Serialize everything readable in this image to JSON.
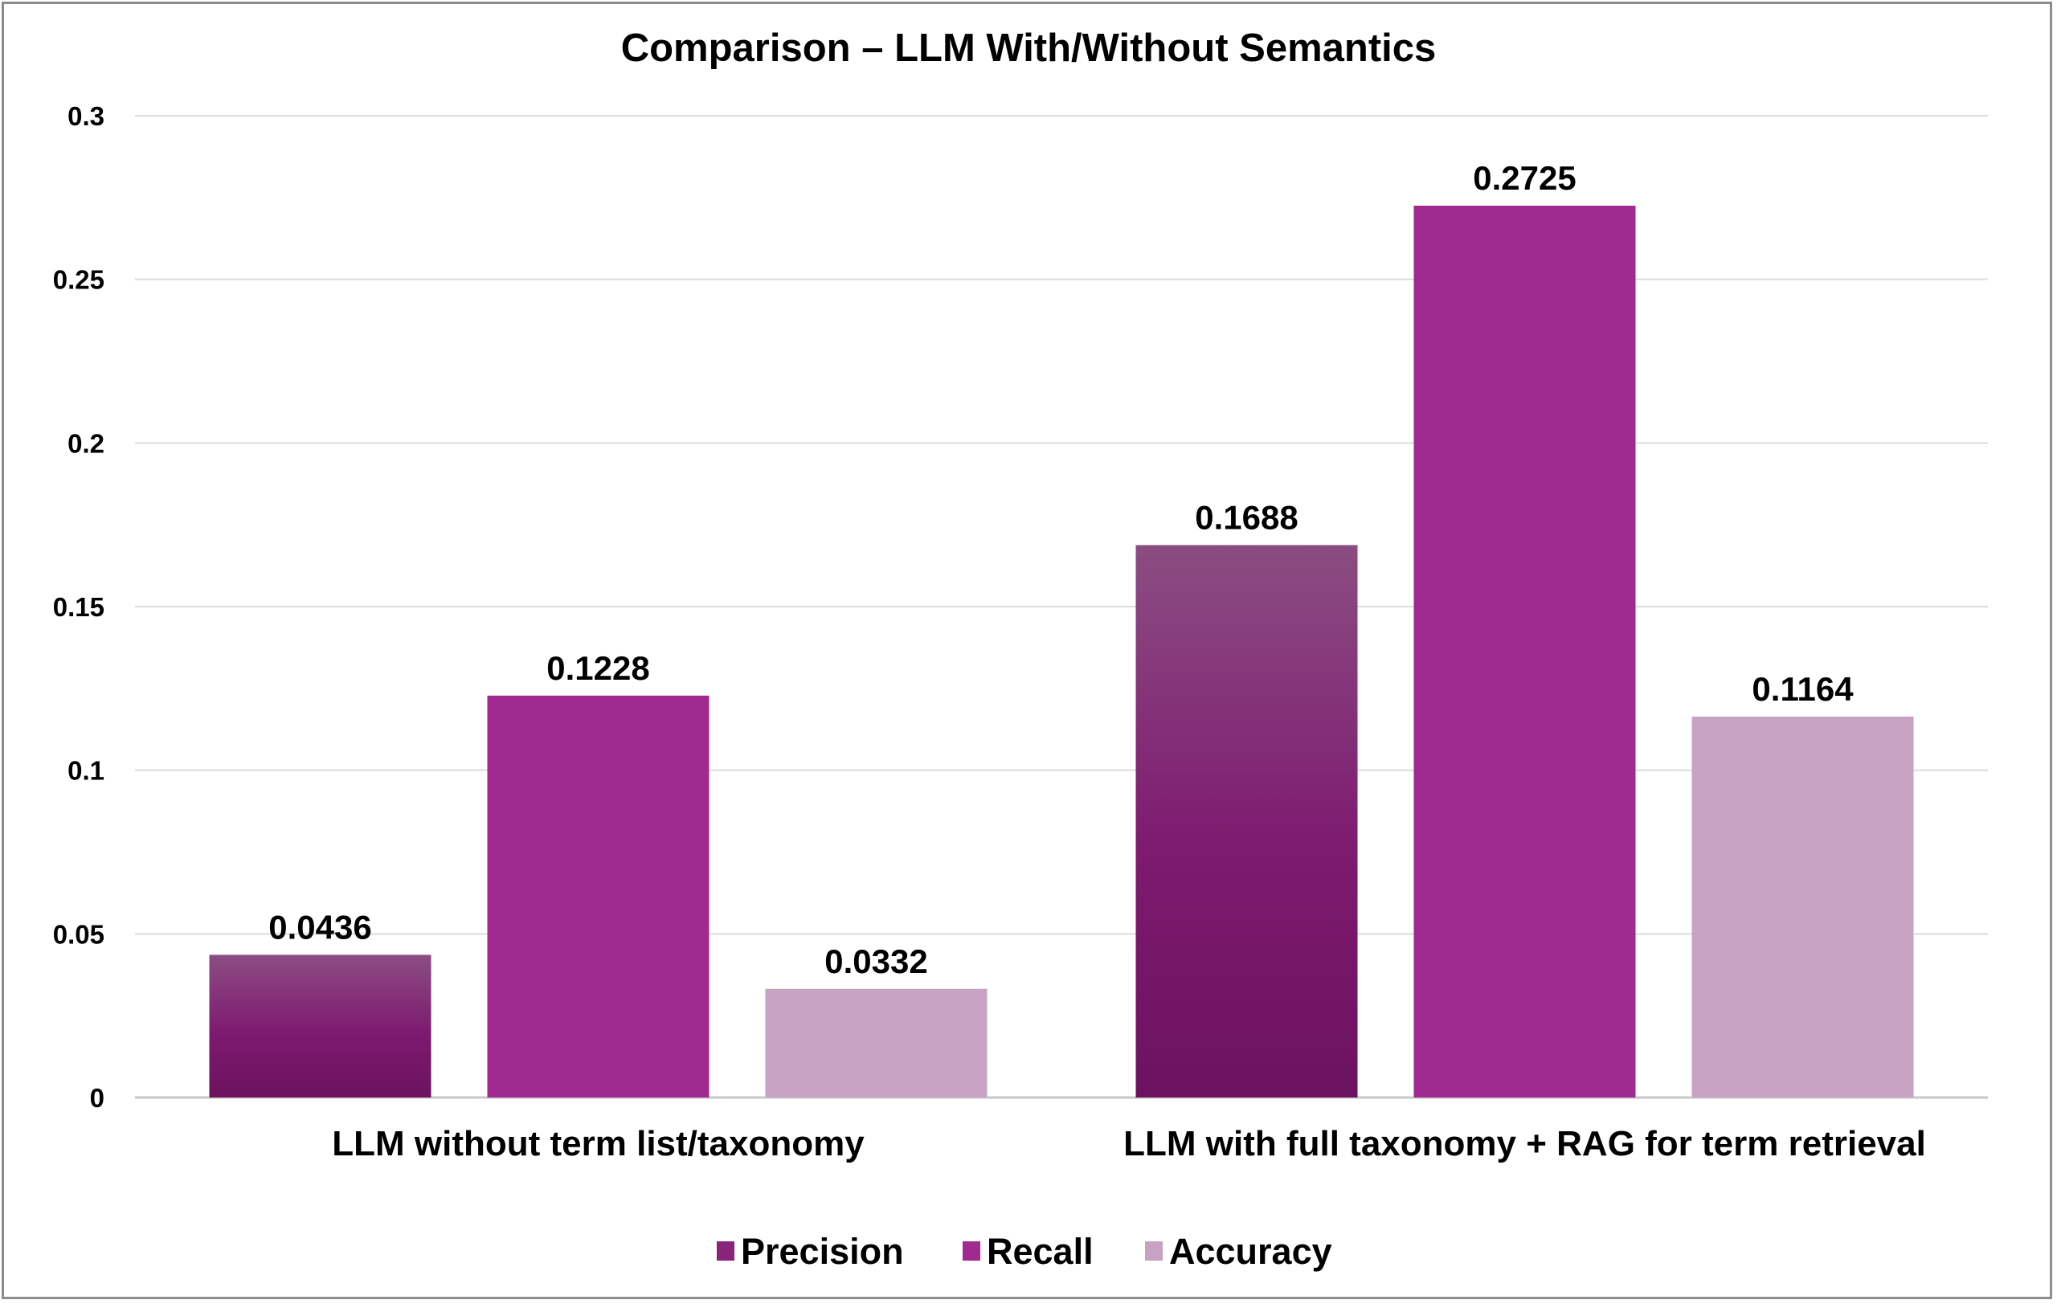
{
  "chart_data": {
    "type": "bar",
    "title": "Comparison – LLM With/Without Semantics",
    "xlabel": "",
    "ylabel": "",
    "categories": [
      "LLM without term list/taxonomy",
      "LLM with full taxonomy + RAG for term retrieval"
    ],
    "series": [
      {
        "name": "Precision",
        "values": [
          0.0436,
          0.1688
        ],
        "color": "#7a1a6c",
        "gradient_top": "#8b4d82"
      },
      {
        "name": "Recall",
        "values": [
          0.1228,
          0.2725
        ],
        "color": "#a02a8f"
      },
      {
        "name": "Accuracy",
        "values": [
          0.0332,
          0.1164
        ],
        "color": "#c8a2c2"
      }
    ],
    "data_labels": [
      [
        "0.0436",
        "0.1688"
      ],
      [
        "0.1228",
        "0.2725"
      ],
      [
        "0.0332",
        "0.1164"
      ]
    ],
    "ylim": [
      0,
      0.3
    ],
    "yticks": [
      "0",
      "0.05",
      "0.1",
      "0.15",
      "0.2",
      "0.25",
      "0.3"
    ],
    "grid": true,
    "legend_position": "bottom"
  }
}
